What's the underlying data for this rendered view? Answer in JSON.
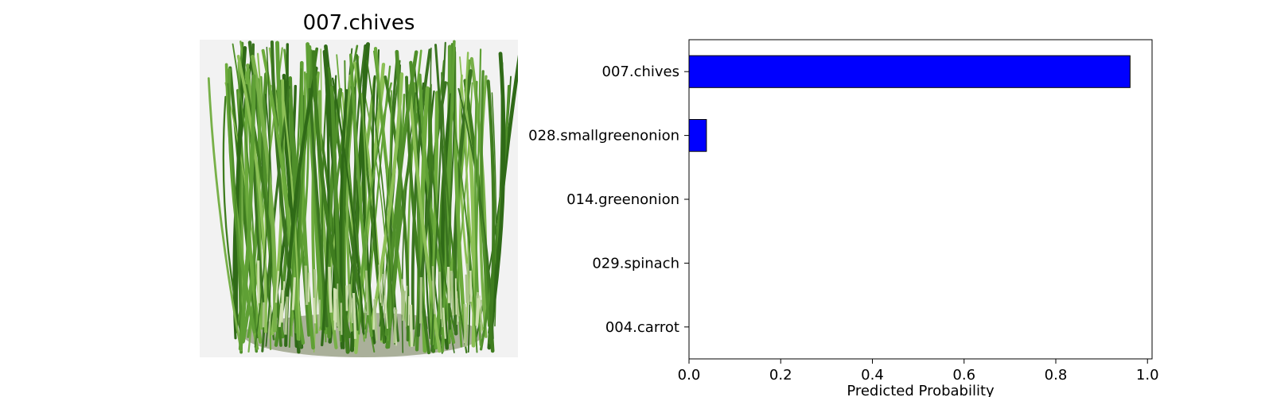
{
  "image_panel": {
    "title": "007.chives",
    "photo_subject": "chives-photo"
  },
  "chart_data": {
    "type": "bar",
    "orientation": "horizontal",
    "categories": [
      "007.chives",
      "028.smallgreenonion",
      "014.greenonion",
      "029.spinach",
      "004.carrot"
    ],
    "values": [
      0.962,
      0.038,
      0.0,
      0.0,
      0.0
    ],
    "xlabel": "Predicted Probability",
    "ylabel": "",
    "title": "",
    "xlim": [
      0.0,
      1.01
    ],
    "xticks": [
      "0.0",
      "0.2",
      "0.4",
      "0.6",
      "0.8",
      "1.0"
    ],
    "bar_color": "#0000ff",
    "edge_color": "#000000",
    "grid": false
  }
}
